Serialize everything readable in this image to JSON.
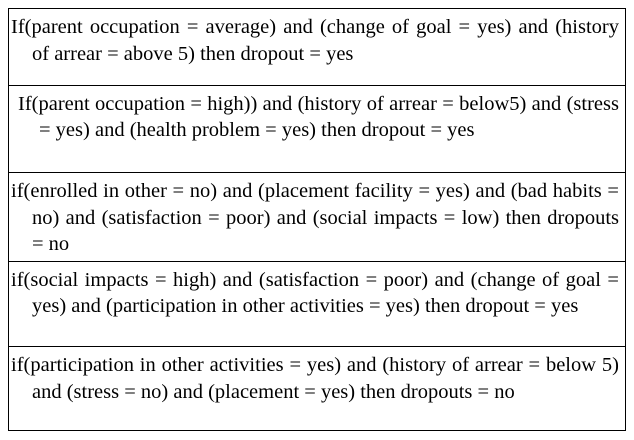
{
  "rules": [
    "If(parent occupation = average) and (change of goal = yes) and (history of arrear = above 5) then dropout = yes",
    "If(parent occupation = high)) and (history of arrear = below5) and (stress = yes) and (health problem = yes) then dropout = yes",
    "if(enrolled in other = no) and (placement facility = yes) and (bad habits = no) and (satisfaction = poor) and (social impacts = low) then dropouts = no",
    "if(social impacts = high) and (satisfaction = poor) and (change of goal = yes) and (participation in other activities = yes) then dropout = yes",
    "if(participation in other activities = yes) and (history of arrear = below 5) and (stress = no) and (placement = yes) then dropouts = no"
  ]
}
